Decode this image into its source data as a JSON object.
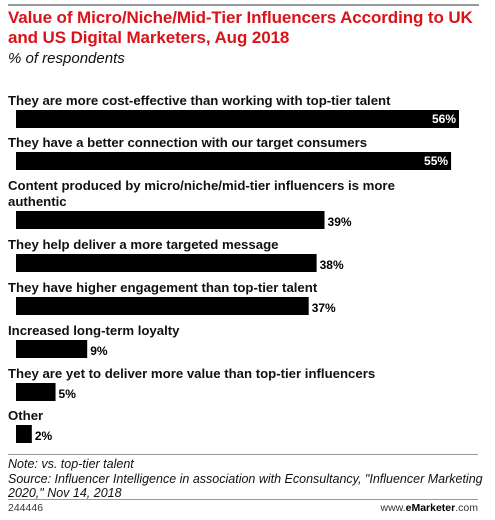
{
  "header": {
    "title": "Value of Micro/Niche/Mid-Tier Influencers According to UK and US Digital Marketers, Aug 2018",
    "subtitle": "% of respondents"
  },
  "chart_data": {
    "type": "bar",
    "orientation": "horizontal",
    "title": "Value of Micro/Niche/Mid-Tier Influencers According to UK and US Digital Marketers, Aug 2018",
    "subtitle": "% of respondents",
    "categories": [
      "They are more cost-effective than working with top-tier talent",
      "They have a better connection with our target consumers",
      "Content produced by micro/niche/mid-tier influencers is more authentic",
      "They help deliver a more targeted message",
      "They have higher engagement than top-tier talent",
      "Increased long-term loyalty",
      "They are yet to deliver more value than top-tier influencers",
      "Other"
    ],
    "label_lines": [
      [
        "They are more cost-effective than working with top-tier talent"
      ],
      [
        "They have a better connection with our target consumers"
      ],
      [
        "Content produced by micro/niche/mid-tier influencers is more",
        "authentic"
      ],
      [
        "They help deliver a more targeted message"
      ],
      [
        "They have higher engagement than top-tier talent"
      ],
      [
        "Increased long-term loyalty"
      ],
      [
        "They are yet to deliver more value than top-tier influencers"
      ],
      [
        "Other"
      ]
    ],
    "values": [
      56,
      55,
      39,
      38,
      37,
      9,
      5,
      2
    ],
    "value_labels": [
      "56%",
      "55%",
      "39%",
      "38%",
      "37%",
      "9%",
      "5%",
      "2%"
    ],
    "unit": "%",
    "xlim": [
      0,
      56
    ],
    "bar_color": "#000000",
    "title_color": "#d8141b",
    "grid": false,
    "legend": "none"
  },
  "notes": {
    "note": "Note: vs. top-tier talent",
    "source": "Source: Influencer Intelligence in association with Econsultancy, \"Influencer Marketing 2020,\" Nov 14, 2018"
  },
  "footer": {
    "chart_id": "244446",
    "brand_prefix": "www.",
    "brand_name": "eMarketer",
    "brand_suffix": ".com"
  }
}
